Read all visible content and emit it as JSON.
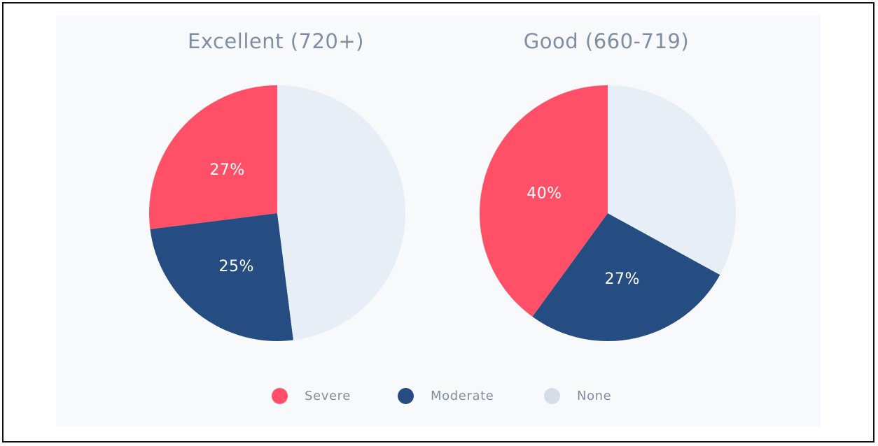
{
  "chart_data": [
    {
      "type": "pie",
      "title": "Excellent (720+)",
      "slices": [
        {
          "name": "Severe",
          "value": 27,
          "label": "27%"
        },
        {
          "name": "Moderate",
          "value": 25,
          "label": "25%"
        },
        {
          "name": "None",
          "value": 48,
          "label": ""
        }
      ]
    },
    {
      "type": "pie",
      "title": "Good (660-719)",
      "slices": [
        {
          "name": "Severe",
          "value": 40,
          "label": "40%"
        },
        {
          "name": "Moderate",
          "value": 27,
          "label": "27%"
        },
        {
          "name": "None",
          "value": 33,
          "label": ""
        }
      ]
    }
  ],
  "legend": {
    "items": [
      {
        "name": "Severe",
        "color": "#ff5068"
      },
      {
        "name": "Moderate",
        "color": "#264d82"
      },
      {
        "name": "None",
        "color": "#d5dde7"
      }
    ]
  },
  "colors": {
    "severe": "#ff5068",
    "moderate": "#264d82",
    "none": "#e8eef6"
  }
}
